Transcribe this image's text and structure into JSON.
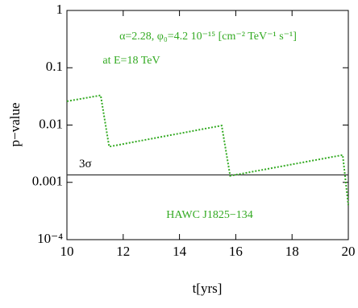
{
  "chart_data": {
    "type": "line",
    "xlabel": "t[yrs]",
    "ylabel": "p−value",
    "annotations": [
      "α=2.28, φ₀=4.2 10⁻¹⁵ [cm⁻² TeV⁻¹ s⁻¹]",
      "at E=18 TeV",
      "HAWC J1825−134"
    ],
    "x": [
      10,
      11.2,
      11.5,
      15.5,
      15.8,
      19.8,
      20
    ],
    "series": [
      {
        "name": "HAWC J1825−134",
        "color": "#33aa22",
        "values": [
          0.026,
          0.033,
          0.0042,
          0.0098,
          0.0013,
          0.003,
          0.0004
        ]
      }
    ],
    "reference_line": {
      "label": "3σ",
      "value": 0.00135
    },
    "xlim": [
      10,
      20
    ],
    "xticks": [
      10,
      12,
      14,
      16,
      18,
      20
    ],
    "ylim": [
      0.0001,
      1
    ],
    "yticks": [
      {
        "value": 0.0001,
        "label": "10⁻⁴"
      },
      0.001,
      0.01,
      0.1,
      1
    ],
    "log_y": true
  }
}
